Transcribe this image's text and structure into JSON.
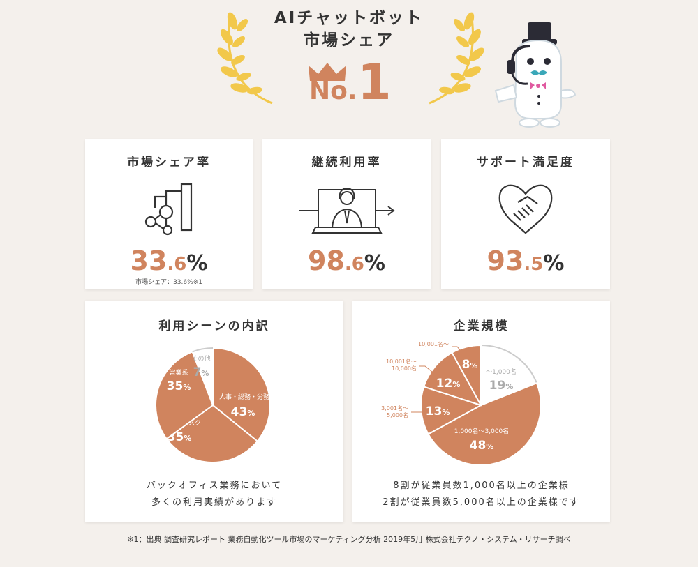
{
  "hero": {
    "title_line1": "AIチャットボット",
    "title_line2": "市場シェア",
    "rank_prefix": "No.",
    "rank_number": "1"
  },
  "colors": {
    "accent": "#d0845e",
    "gold": "#f2c84b",
    "slice_other": "#ffffff",
    "slice_border": "#cccccc"
  },
  "stats": [
    {
      "title": "市場シェア率",
      "icon": "share-chart-icon",
      "int": "33",
      "dec": ".6",
      "unit": "%",
      "note": "市場シェア：33.6%※1"
    },
    {
      "title": "継続利用率",
      "icon": "operator-screen-icon",
      "int": "98",
      "dec": ".6",
      "unit": "%"
    },
    {
      "title": "サポート満足度",
      "icon": "handshake-icon",
      "int": "93",
      "dec": ".5",
      "unit": "%"
    }
  ],
  "chart_data": [
    {
      "type": "pie",
      "title": "利用シーンの内訳",
      "slices": [
        {
          "label": "人事・総務・労務",
          "value": 43
        },
        {
          "label": "ITヘルプデスク",
          "value": 35
        },
        {
          "label": "営業系",
          "value": 35
        },
        {
          "label": "その他",
          "value": 7
        }
      ],
      "caption_line1": "バックオフィス業務において",
      "caption_line2": "多くの利用実績があります"
    },
    {
      "type": "pie",
      "title": "企業規模",
      "slices": [
        {
          "label": "〜1,000名",
          "value": 19
        },
        {
          "label": "1,000名〜3,000名",
          "value": 48
        },
        {
          "label": "3,001名〜 5,000名",
          "value": 13
        },
        {
          "label": "10,001名〜 10,000名",
          "value": 12
        },
        {
          "label": "10,001名〜",
          "value": 8
        }
      ],
      "caption_line1": "8割が従業員数1,000名以上の企業様",
      "caption_line2": "2割が従業員数5,000名以上の企業様です"
    }
  ],
  "footnote": "※1：出典 調査研究レポート 業務自動化ツール市場のマーケティング分析 2019年5月 株式会社テクノ・システム・リサーチ調べ"
}
